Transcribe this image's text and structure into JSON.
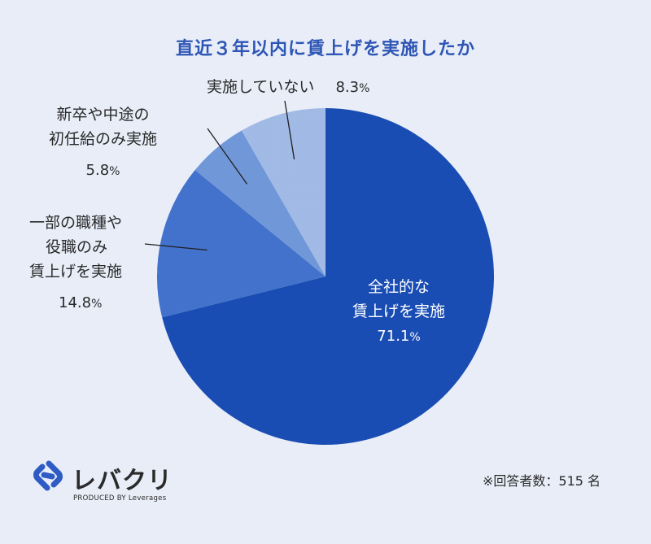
{
  "chart_data": {
    "type": "pie",
    "title": "直近３年以内に賃上げを実施したか",
    "slices": [
      {
        "label_lines": [
          "全社的な",
          "賃上げを実施"
        ],
        "value": 71.1,
        "color": "#1a4db3"
      },
      {
        "label_lines": [
          "一部の職種や",
          "役職のみ",
          "賃上げを実施"
        ],
        "value": 14.8,
        "color": "#4372cc"
      },
      {
        "label_lines": [
          "新卒や中途の",
          "初任給のみ実施"
        ],
        "value": 5.8,
        "color": "#7097d8"
      },
      {
        "label_lines": [
          "実施していない"
        ],
        "value": 8.3,
        "color": "#a2bbe6"
      }
    ],
    "unit": "%",
    "note": "※回答者数：515 名"
  },
  "brand": {
    "name": "レバクリ",
    "sub": "PRODUCED BY Leverages",
    "color": "#2e5bc4"
  }
}
